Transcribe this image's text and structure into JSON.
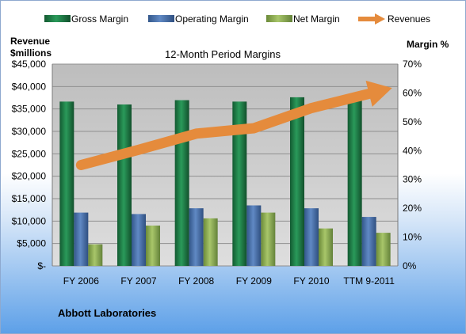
{
  "company": "Abbott Laboratories",
  "colors": {
    "gross": "#1e7a45",
    "operating": "#4a72ad",
    "net": "#8fae52",
    "revenue": "#e58b3c",
    "plot_bg": "#c9c9c9"
  },
  "chart_data": {
    "type": "bar",
    "title": "12-Month Period Margins",
    "ylabel_left": [
      "Revenue",
      "$millions"
    ],
    "ylabel_right": "Margin %",
    "categories": [
      "FY 2006",
      "FY 2007",
      "FY 2008",
      "FY 2009",
      "FY 2010",
      "TTM 9-2011"
    ],
    "left_axis": {
      "ylim": [
        0,
        45000
      ],
      "ticks": [
        "$-",
        "$5,000",
        "$10,000",
        "$15,000",
        "$20,000",
        "$25,000",
        "$30,000",
        "$35,000",
        "$40,000",
        "$45,000"
      ]
    },
    "right_axis": {
      "ylim": [
        0,
        70
      ],
      "ticks": [
        "0%",
        "10%",
        "20%",
        "30%",
        "40%",
        "50%",
        "60%",
        "70%"
      ]
    },
    "grid": true,
    "legend_position": "top",
    "series": [
      {
        "name": "Gross Margin",
        "axis": "right",
        "kind": "bar",
        "values": [
          57,
          56,
          57.5,
          57,
          58.5,
          58.5
        ]
      },
      {
        "name": "Operating Margin",
        "axis": "right",
        "kind": "bar",
        "values": [
          18.5,
          18,
          20,
          21,
          20,
          17
        ]
      },
      {
        "name": "Net Margin",
        "axis": "right",
        "kind": "bar",
        "values": [
          7.5,
          14,
          16.5,
          18.5,
          13,
          11.5
        ]
      },
      {
        "name": "Revenues",
        "axis": "left",
        "kind": "line",
        "values": [
          22500,
          25900,
          29500,
          30700,
          35200,
          38400
        ]
      }
    ]
  }
}
